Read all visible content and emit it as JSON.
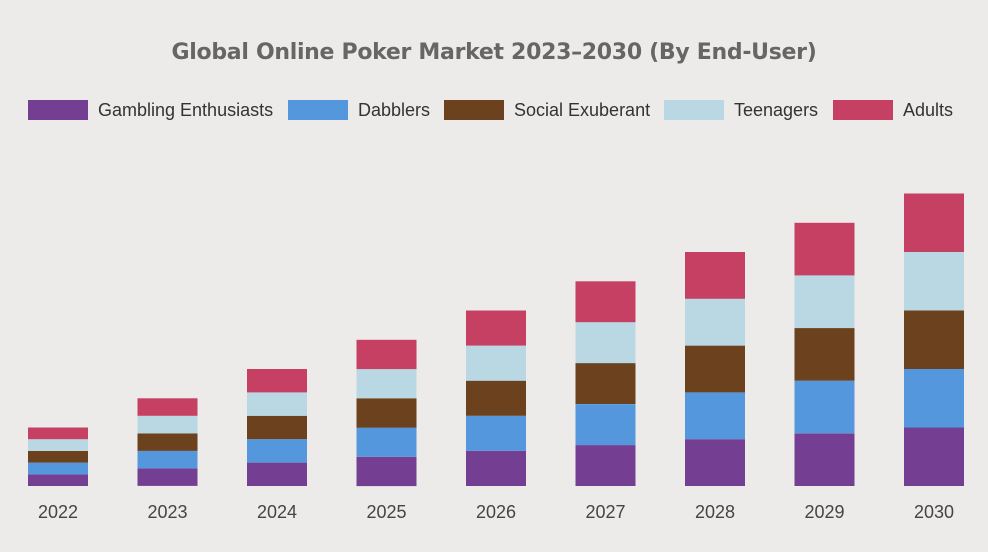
{
  "chart_data": {
    "type": "bar",
    "stacked": true,
    "title": "Global Online Poker Market 2023–2030 (By End-User)",
    "xlabel": "",
    "ylabel": "",
    "categories": [
      "2022",
      "2023",
      "2024",
      "2025",
      "2026",
      "2027",
      "2028",
      "2029",
      "2030"
    ],
    "series": [
      {
        "name": "Gambling Enthusiasts",
        "color": "#743f93",
        "values": [
          2.0,
          3.0,
          4.0,
          5.0,
          6.0,
          7.0,
          8.0,
          9.0,
          10.0
        ]
      },
      {
        "name": "Dabblers",
        "color": "#5597dc",
        "values": [
          2.0,
          3.0,
          4.0,
          5.0,
          6.0,
          7.0,
          8.0,
          9.0,
          10.0
        ]
      },
      {
        "name": "Social Exuberant",
        "color": "#6b421d",
        "values": [
          2.0,
          3.0,
          4.0,
          5.0,
          6.0,
          7.0,
          8.0,
          9.0,
          10.0
        ]
      },
      {
        "name": "Teenagers",
        "color": "#b9d8e3",
        "values": [
          2.0,
          3.0,
          4.0,
          5.0,
          6.0,
          7.0,
          8.0,
          9.0,
          10.0
        ]
      },
      {
        "name": "Adults",
        "color": "#c64064",
        "values": [
          2.0,
          3.0,
          4.0,
          5.0,
          6.0,
          7.0,
          8.0,
          9.0,
          10.0
        ]
      }
    ],
    "ylim": [
      0,
      50
    ],
    "y_axis_visible": false,
    "grid": false,
    "legend_position": "top"
  }
}
